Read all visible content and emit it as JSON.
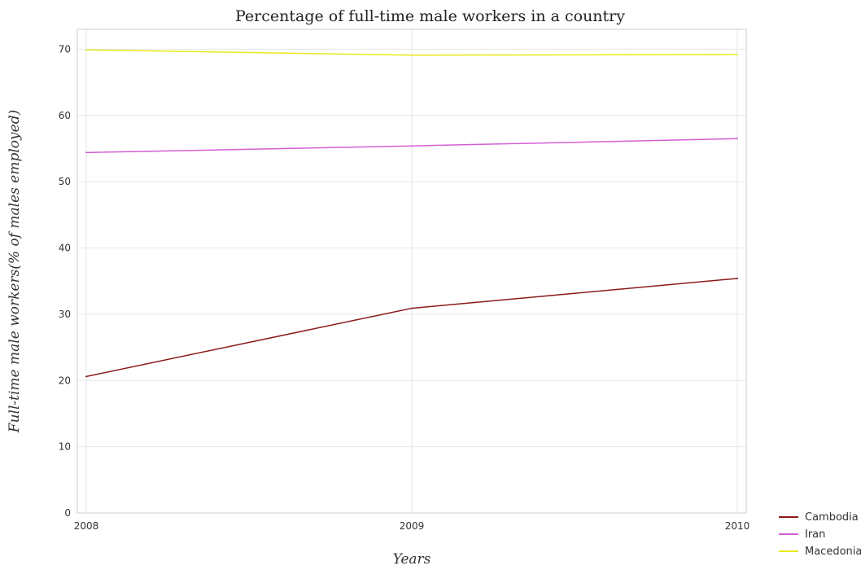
{
  "chart_data": {
    "type": "line",
    "title": "Percentage of full-time male workers in a country",
    "xlabel": "Years",
    "ylabel": "Full-time male workers(% of males employed)",
    "categories": [
      "2008",
      "2009",
      "2010"
    ],
    "ylim": [
      0,
      73
    ],
    "yticks": [
      0,
      10,
      20,
      30,
      40,
      50,
      60,
      70
    ],
    "grid": true,
    "legend_position": "bottom-right",
    "series": [
      {
        "name": "Cambodia",
        "color": "#8b1a1a",
        "values": [
          20.6,
          30.9,
          35.4
        ]
      },
      {
        "name": "Iran",
        "color": "#d35fd3",
        "values": [
          54.4,
          55.4,
          56.5
        ]
      },
      {
        "name": "Macedonia",
        "color": "#e8e81a",
        "values": [
          69.9,
          69.1,
          69.2
        ]
      }
    ]
  }
}
